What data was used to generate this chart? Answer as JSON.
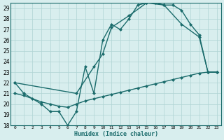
{
  "line1_x": [
    0,
    1,
    3,
    4,
    5,
    6,
    7,
    8,
    9,
    10,
    11,
    12,
    13,
    14,
    15,
    16,
    17,
    18,
    19,
    20,
    21,
    22,
    23
  ],
  "line1_y": [
    22,
    21,
    20,
    19.3,
    19.3,
    18,
    19.3,
    23.5,
    21,
    26,
    27.5,
    27,
    28,
    29.3,
    29.5,
    29.5,
    29.3,
    29.3,
    28.8,
    27.5,
    26.5,
    23,
    23
  ],
  "line2_x": [
    0,
    7,
    9,
    10,
    11,
    13,
    15,
    17,
    19,
    21,
    22,
    23
  ],
  "line2_y": [
    22,
    21,
    23.5,
    24.7,
    27.2,
    28.3,
    29.5,
    29.3,
    27.5,
    26.3,
    23,
    23
  ],
  "line3_x": [
    0,
    1,
    2,
    3,
    4,
    5,
    6,
    7,
    8,
    9,
    10,
    11,
    12,
    13,
    14,
    15,
    16,
    17,
    18,
    19,
    20,
    21,
    22,
    23
  ],
  "line3_y": [
    21,
    20.8,
    20.5,
    20.2,
    20.0,
    19.8,
    19.7,
    20.0,
    20.3,
    20.5,
    20.7,
    20.9,
    21.1,
    21.3,
    21.5,
    21.7,
    21.9,
    22.1,
    22.3,
    22.5,
    22.7,
    22.9,
    23.0,
    23.0
  ],
  "line_color": "#1a6b6b",
  "bg_color": "#d8eeee",
  "grid_color": "#afd4d4",
  "xlabel": "Humidex (Indice chaleur)",
  "xlim_min": -0.5,
  "xlim_max": 23.5,
  "ylim_min": 18,
  "ylim_max": 29.5,
  "xticks": [
    0,
    1,
    2,
    3,
    4,
    5,
    6,
    7,
    8,
    9,
    10,
    11,
    12,
    13,
    14,
    15,
    16,
    17,
    18,
    19,
    20,
    21,
    22,
    23
  ],
  "yticks": [
    18,
    19,
    20,
    21,
    22,
    23,
    24,
    25,
    26,
    27,
    28,
    29
  ],
  "markersize": 2.5,
  "linewidth": 1.0
}
